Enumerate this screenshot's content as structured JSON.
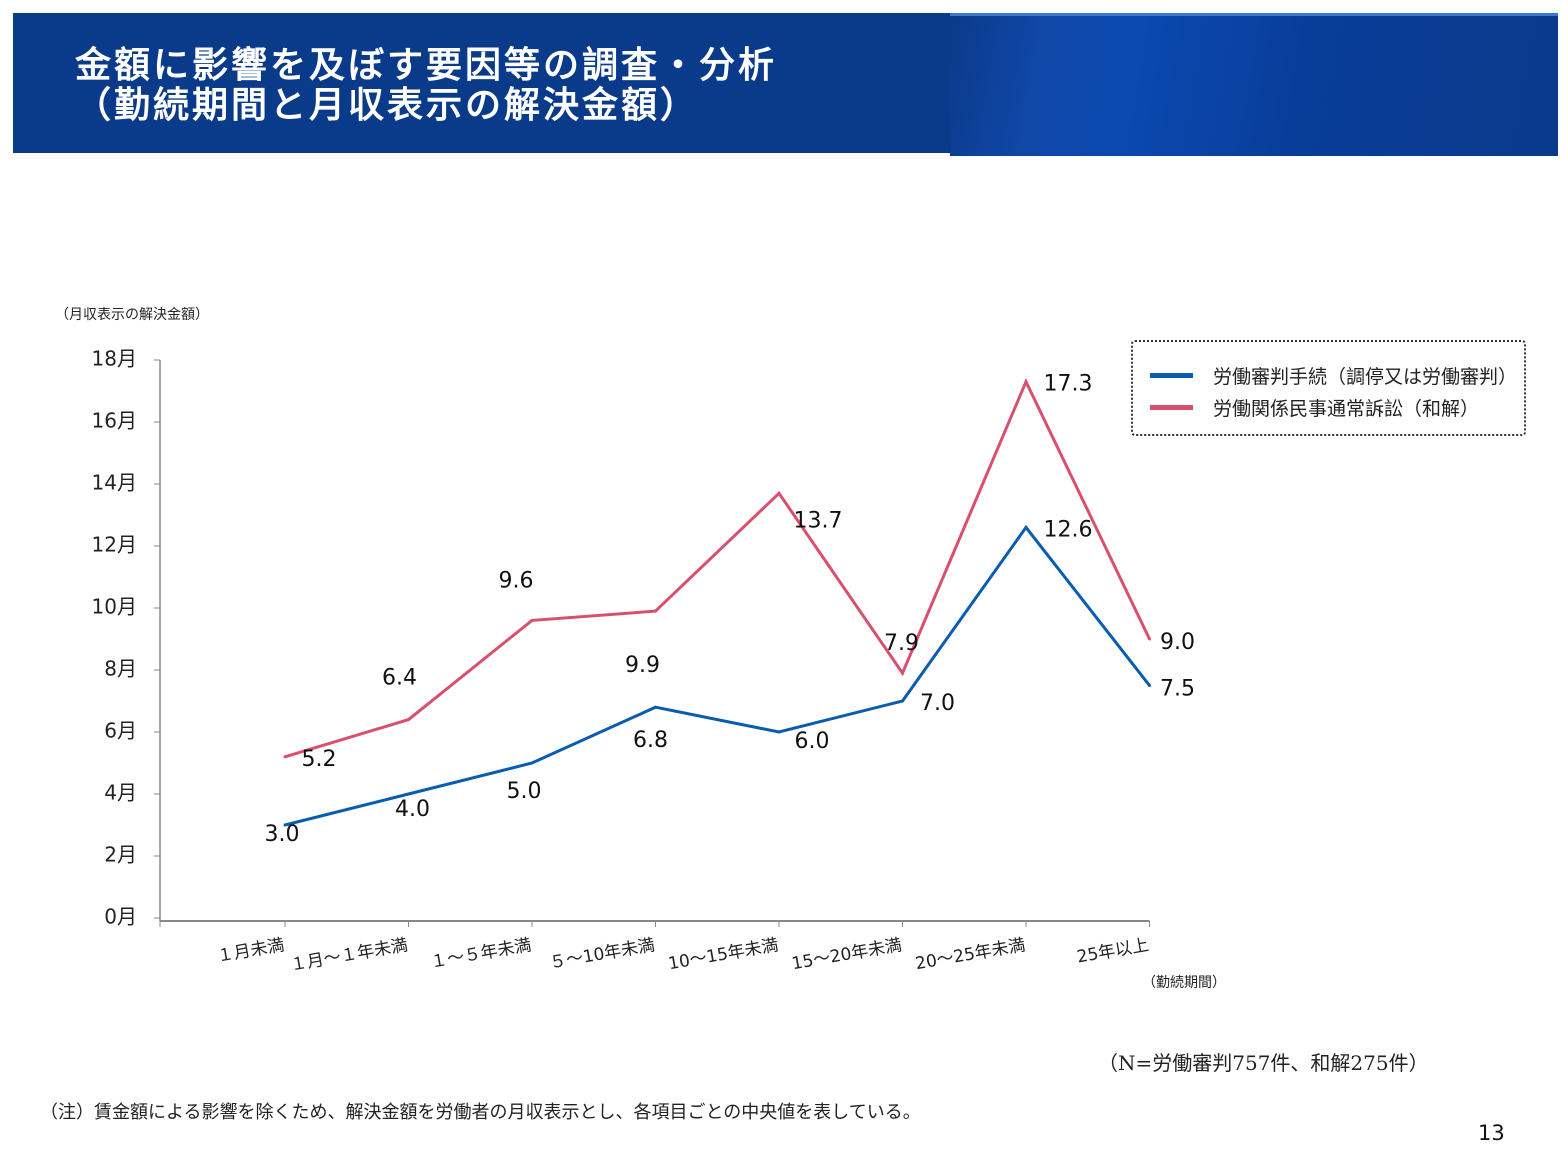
{
  "header": {
    "title_line1": "金額に影響を及ぼす要因等の調査・分析",
    "title_line2": "（勤続期間と月収表示の解決金額）"
  },
  "chart_data": {
    "type": "line",
    "ylabel": "（月収表示の解決金額）",
    "xlabel": "（勤続期間）",
    "ylim": [
      0,
      18
    ],
    "yticks": [
      "0月",
      "2月",
      "4月",
      "6月",
      "8月",
      "10月",
      "12月",
      "14月",
      "16月",
      "18月"
    ],
    "ytick_values": [
      0,
      2,
      4,
      6,
      8,
      10,
      12,
      14,
      16,
      18
    ],
    "categories": [
      "１月未満",
      "１月～１年未満",
      "１～５年未満",
      "５～10年未満",
      "10～15年未満",
      "15～20年未満",
      "20～25年未満",
      "25年以上"
    ],
    "grid": false,
    "legend_position": "top-right",
    "series": [
      {
        "name": "労働審判手続（調停又は労働審判）",
        "color": "#0a5cb0",
        "values": [
          3.0,
          4.0,
          5.0,
          6.8,
          6.0,
          7.0,
          12.6,
          7.5
        ],
        "labels": [
          "3.0",
          "4.0",
          "5.0",
          "6.8",
          "6.0",
          "7.0",
          "12.6",
          "7.5"
        ]
      },
      {
        "name": "労働関係民事通常訴訟（和解）",
        "color": "#d9506e",
        "values": [
          5.2,
          6.4,
          9.6,
          9.9,
          13.7,
          7.9,
          17.3,
          9.0
        ],
        "labels": [
          "5.2",
          "6.4",
          "9.6",
          "9.9",
          "13.7",
          "7.9",
          "17.3",
          "9.0"
        ]
      }
    ]
  },
  "footer": {
    "sample_note": "（N=労働審判757件、和解275件）",
    "note": "（注）賃金額による影響を除くため、解決金額を労働者の月収表示とし、各項目ごとの中央値を表している。",
    "page_number": "13"
  }
}
